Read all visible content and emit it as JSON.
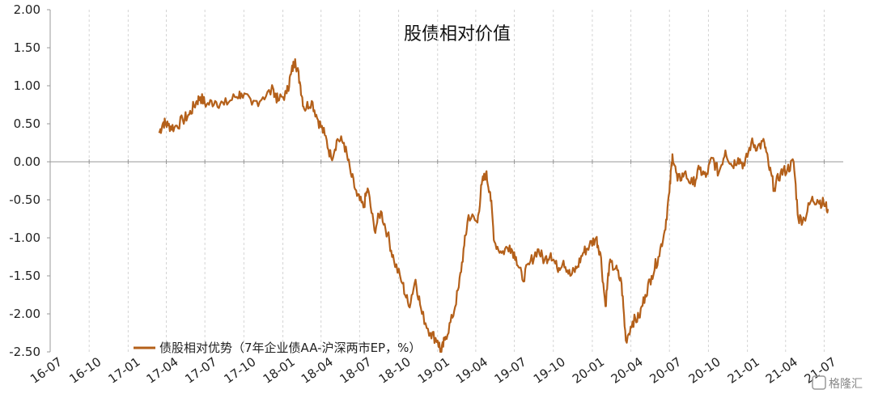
{
  "chart_data": {
    "type": "line",
    "title": "股债相对价值",
    "ylim": [
      -2.5,
      2.0
    ],
    "yticks": [
      "2.00",
      "1.50",
      "1.00",
      "0.50",
      "0.00",
      "-0.50",
      "-1.00",
      "-1.50",
      "-2.00",
      "-2.50"
    ],
    "xticks": [
      "16-07",
      "16-10",
      "17-01",
      "17-04",
      "17-07",
      "17-10",
      "18-01",
      "18-04",
      "18-07",
      "18-10",
      "19-01",
      "19-04",
      "19-07",
      "19-10",
      "20-01",
      "20-04",
      "20-07",
      "20-10",
      "21-01",
      "21-04",
      "21-07"
    ],
    "grid": "vertical-dashed",
    "legend_position": "bottom-left",
    "series": [
      {
        "name": "债股相对优势（7年企业债AA-沪深两市EP，%）",
        "color": "#b4601a",
        "points": [
          [
            "2017-03-15",
            0.38
          ],
          [
            "2017-03-25",
            0.52
          ],
          [
            "2017-04-05",
            0.48
          ],
          [
            "2017-04-20",
            0.45
          ],
          [
            "2017-05-10",
            0.55
          ],
          [
            "2017-05-25",
            0.62
          ],
          [
            "2017-06-10",
            0.78
          ],
          [
            "2017-06-20",
            0.85
          ],
          [
            "2017-07-05",
            0.75
          ],
          [
            "2017-07-25",
            0.8
          ],
          [
            "2017-08-15",
            0.75
          ],
          [
            "2017-09-10",
            0.85
          ],
          [
            "2017-09-25",
            0.9
          ],
          [
            "2017-10-20",
            0.75
          ],
          [
            "2017-11-15",
            0.85
          ],
          [
            "2017-12-10",
            0.95
          ],
          [
            "2017-12-20",
            0.8
          ],
          [
            "2018-01-10",
            0.9
          ],
          [
            "2018-01-20",
            1.15
          ],
          [
            "2018-01-30",
            1.35
          ],
          [
            "2018-02-10",
            1.05
          ],
          [
            "2018-02-20",
            0.7
          ],
          [
            "2018-03-10",
            0.8
          ],
          [
            "2018-03-25",
            0.55
          ],
          [
            "2018-04-10",
            0.35
          ],
          [
            "2018-04-25",
            0.05
          ],
          [
            "2018-05-10",
            0.3
          ],
          [
            "2018-05-25",
            0.25
          ],
          [
            "2018-06-10",
            -0.15
          ],
          [
            "2018-06-25",
            -0.45
          ],
          [
            "2018-07-10",
            -0.6
          ],
          [
            "2018-07-20",
            -0.35
          ],
          [
            "2018-08-05",
            -0.9
          ],
          [
            "2018-08-20",
            -0.65
          ],
          [
            "2018-09-05",
            -0.95
          ],
          [
            "2018-09-20",
            -1.3
          ],
          [
            "2018-10-10",
            -1.6
          ],
          [
            "2018-10-25",
            -1.9
          ],
          [
            "2018-11-10",
            -1.55
          ],
          [
            "2018-11-25",
            -2.0
          ],
          [
            "2018-12-15",
            -2.25
          ],
          [
            "2019-01-01",
            -2.35
          ],
          [
            "2019-01-10",
            -2.5
          ],
          [
            "2019-01-20",
            -2.3
          ],
          [
            "2019-02-05",
            -2.05
          ],
          [
            "2019-02-20",
            -1.65
          ],
          [
            "2019-03-05",
            -1.1
          ],
          [
            "2019-03-15",
            -0.7
          ],
          [
            "2019-04-05",
            -0.8
          ],
          [
            "2019-04-15",
            -0.3
          ],
          [
            "2019-04-25",
            -0.15
          ],
          [
            "2019-05-05",
            -0.4
          ],
          [
            "2019-05-15",
            -1.05
          ],
          [
            "2019-06-01",
            -1.2
          ],
          [
            "2019-06-20",
            -1.1
          ],
          [
            "2019-07-05",
            -1.25
          ],
          [
            "2019-07-20",
            -1.55
          ],
          [
            "2019-08-05",
            -1.35
          ],
          [
            "2019-08-25",
            -1.15
          ],
          [
            "2019-09-10",
            -1.3
          ],
          [
            "2019-09-25",
            -1.2
          ],
          [
            "2019-10-10",
            -1.4
          ],
          [
            "2019-10-25",
            -1.3
          ],
          [
            "2019-11-10",
            -1.5
          ],
          [
            "2019-11-25",
            -1.4
          ],
          [
            "2019-12-10",
            -1.2
          ],
          [
            "2019-12-25",
            -1.1
          ],
          [
            "2020-01-10",
            -1.0
          ],
          [
            "2020-01-20",
            -1.2
          ],
          [
            "2020-02-01",
            -1.9
          ],
          [
            "2020-02-10",
            -1.35
          ],
          [
            "2020-02-25",
            -1.4
          ],
          [
            "2020-03-10",
            -1.6
          ],
          [
            "2020-03-20",
            -2.35
          ],
          [
            "2020-04-05",
            -2.1
          ],
          [
            "2020-04-20",
            -2.05
          ],
          [
            "2020-05-05",
            -1.75
          ],
          [
            "2020-05-20",
            -1.5
          ],
          [
            "2020-06-05",
            -1.25
          ],
          [
            "2020-06-20",
            -0.9
          ],
          [
            "2020-07-01",
            -0.4
          ],
          [
            "2020-07-08",
            0.1
          ],
          [
            "2020-07-20",
            -0.25
          ],
          [
            "2020-08-05",
            -0.15
          ],
          [
            "2020-08-25",
            -0.3
          ],
          [
            "2020-09-10",
            -0.1
          ],
          [
            "2020-09-25",
            -0.2
          ],
          [
            "2020-10-10",
            0.05
          ],
          [
            "2020-10-25",
            -0.15
          ],
          [
            "2020-11-10",
            0.15
          ],
          [
            "2020-11-25",
            -0.05
          ],
          [
            "2020-12-10",
            0.05
          ],
          [
            "2020-12-25",
            -0.05
          ],
          [
            "2021-01-10",
            0.25
          ],
          [
            "2021-01-25",
            0.2
          ],
          [
            "2021-02-10",
            0.25
          ],
          [
            "2021-02-20",
            -0.05
          ],
          [
            "2021-03-05",
            -0.35
          ],
          [
            "2021-03-20",
            -0.15
          ],
          [
            "2021-04-05",
            -0.1
          ],
          [
            "2021-04-20",
            0.0
          ],
          [
            "2021-05-01",
            -0.75
          ],
          [
            "2021-05-15",
            -0.75
          ],
          [
            "2021-06-01",
            -0.5
          ],
          [
            "2021-06-15",
            -0.5
          ],
          [
            "2021-06-30",
            -0.55
          ],
          [
            "2021-07-10",
            -0.62
          ]
        ]
      }
    ]
  },
  "watermark": "格隆汇"
}
